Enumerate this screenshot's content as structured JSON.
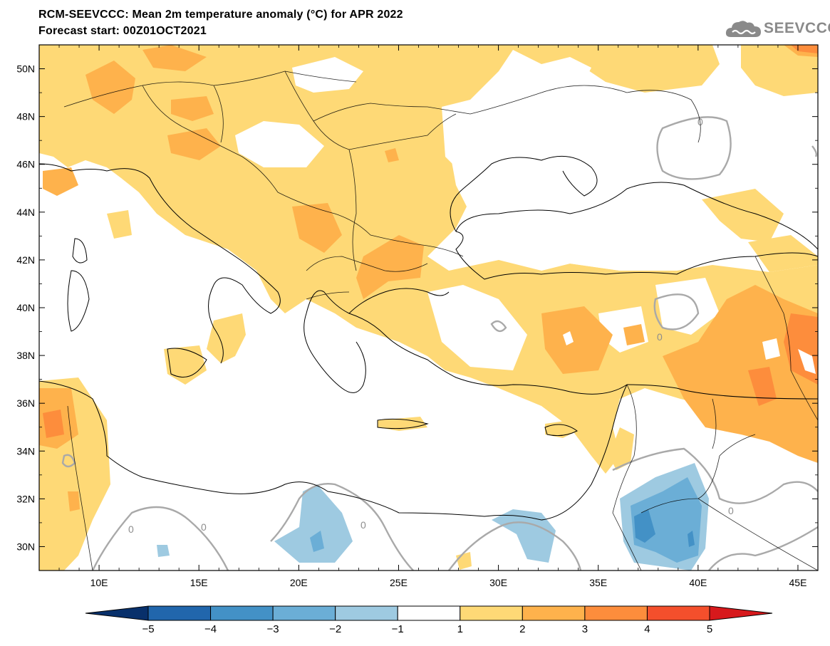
{
  "header": {
    "title": "RCM-SEEVCCC: Mean 2m temperature anomaly (°C) for APR 2022",
    "subtitle": "Forecast start: 00Z01OCT2021"
  },
  "logo": {
    "text": "SEEVCCC",
    "icon": "cloud-icon"
  },
  "map": {
    "lon_range": [
      7,
      46
    ],
    "lat_range": [
      29,
      51
    ],
    "lon_ticks": [
      "10E",
      "15E",
      "20E",
      "25E",
      "30E",
      "35E",
      "40E",
      "45E"
    ],
    "lat_ticks": [
      "50N",
      "48N",
      "46N",
      "44N",
      "42N",
      "40N",
      "38N",
      "36N",
      "34N",
      "32N",
      "30N"
    ],
    "contour_label": "0"
  },
  "colorbar": {
    "labels": [
      "−5",
      "−4",
      "−3",
      "−2",
      "−1",
      "1",
      "2",
      "3",
      "4",
      "5"
    ],
    "colors": {
      "lt_minus5": "#08306b",
      "minus5_minus4": "#2166ac",
      "minus4_minus3": "#4391c6",
      "minus3_minus2": "#6baed6",
      "minus2_minus1": "#9ecae1",
      "minus1_1": "#ffffff",
      "1_2": "#fed976",
      "2_3": "#feb24c",
      "3_4": "#fd8d3c",
      "4_5": "#f44f2c",
      "gt5": "#d7191c"
    }
  }
}
